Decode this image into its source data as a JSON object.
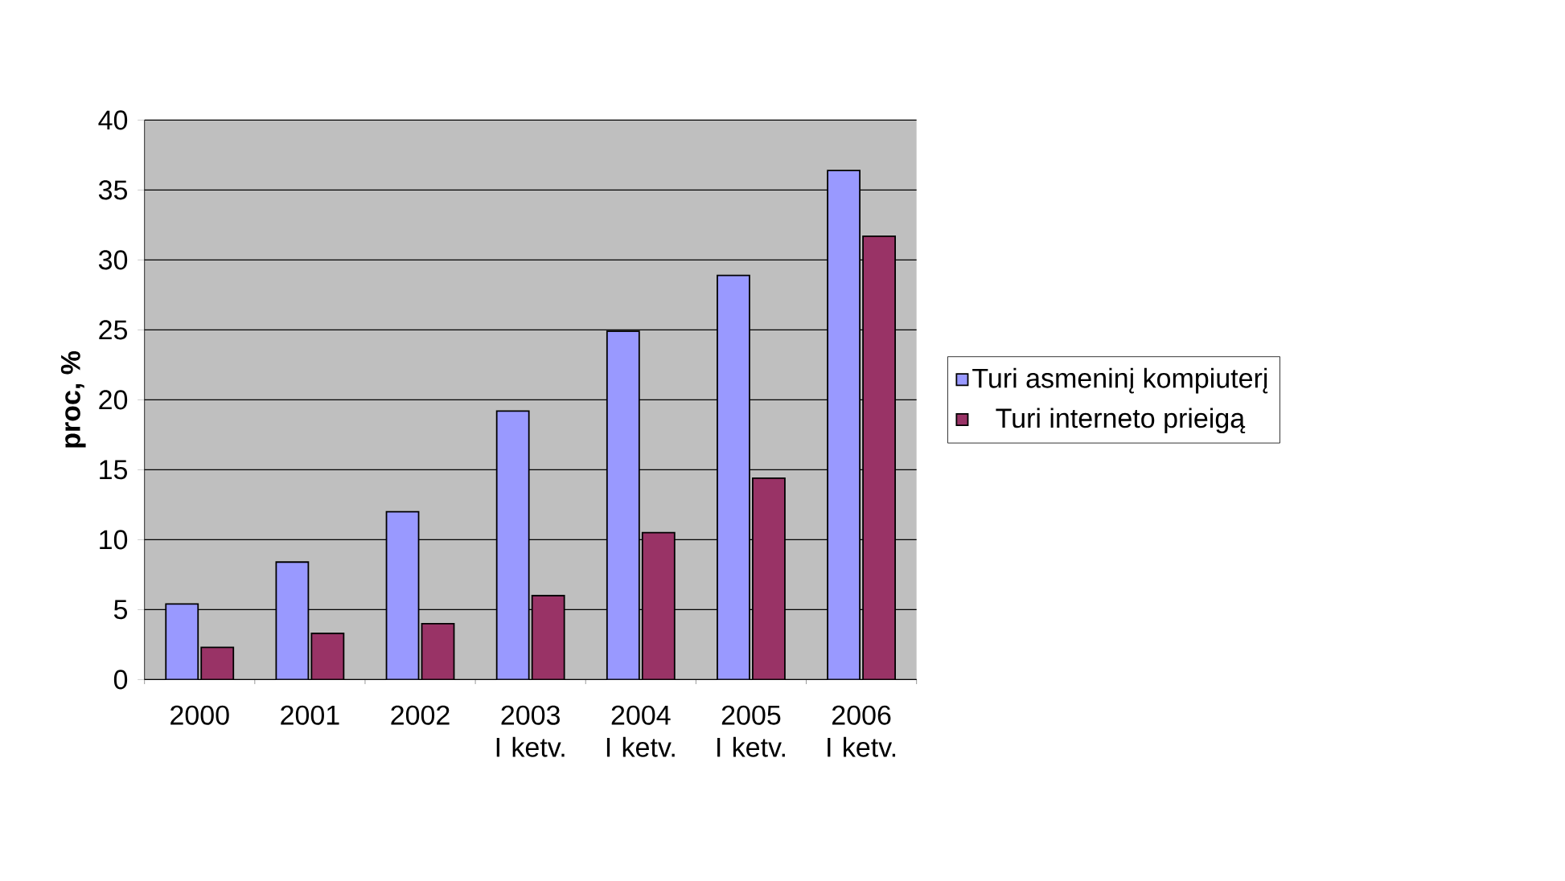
{
  "chart_data": {
    "type": "bar",
    "ylabel": "proc, %",
    "categories": [
      "2000",
      "2001",
      "2002",
      "2003 I ketv.",
      "2004 I ketv.",
      "2005 I ketv.",
      "2006 I ketv."
    ],
    "series": [
      {
        "name": "Turi asmeninį kompiuterį",
        "color": "#9999ff",
        "values": [
          5.4,
          8.4,
          12.0,
          19.2,
          24.9,
          28.9,
          36.4
        ]
      },
      {
        "name": "Turi interneto prieigą",
        "color": "#993366",
        "values": [
          2.3,
          3.3,
          4.0,
          6.0,
          10.5,
          14.4,
          31.7
        ]
      }
    ],
    "ylim": [
      0,
      40
    ],
    "yticks": [
      0,
      5,
      10,
      15,
      20,
      25,
      30,
      35,
      40
    ],
    "grid": "y",
    "legend": "right"
  }
}
